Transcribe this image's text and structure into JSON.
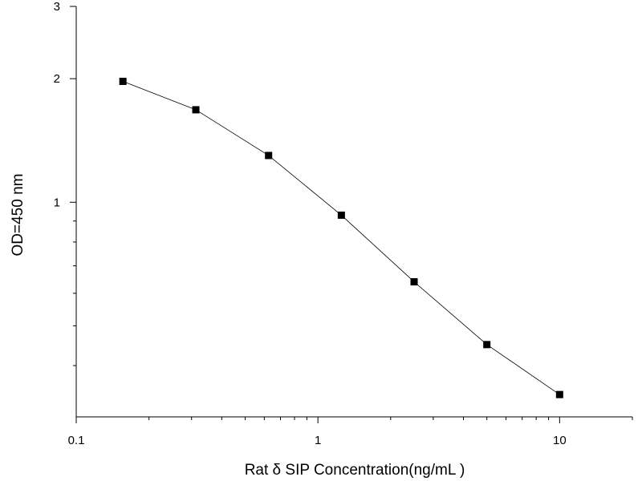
{
  "chart_data": {
    "type": "line",
    "title": "",
    "xlabel": "Rat δ SIP Concentration(ng/mL )",
    "ylabel": "OD=450 nm",
    "x_scale": "log",
    "y_scale": "log",
    "xlim": [
      0.1,
      20
    ],
    "ylim": [
      0.3,
      3
    ],
    "x_ticks": [
      0.1,
      1,
      10
    ],
    "x_tick_labels": [
      "0.1",
      "1",
      "10"
    ],
    "y_ticks": [
      1,
      2,
      3
    ],
    "y_tick_labels": [
      "1",
      "2",
      "3"
    ],
    "grid": false,
    "legend": "none",
    "marker": "square",
    "colors": {
      "line": "#000000",
      "marker": "#000000"
    },
    "x": [
      0.156,
      0.3125,
      0.625,
      1.25,
      2.5,
      5,
      10
    ],
    "y": [
      1.97,
      1.68,
      1.3,
      0.93,
      0.64,
      0.45,
      0.34
    ]
  }
}
